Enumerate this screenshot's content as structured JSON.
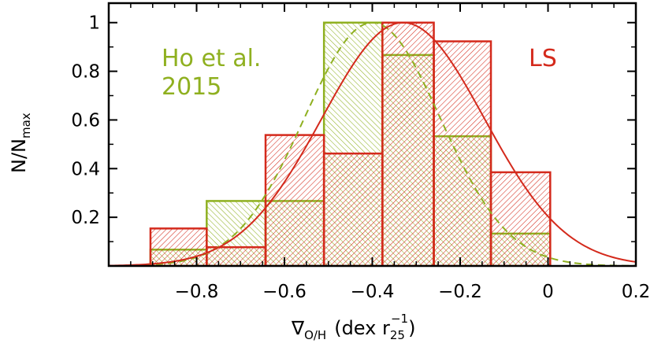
{
  "chart_data": {
    "type": "bar",
    "xlim": [
      -1.0,
      0.2
    ],
    "ylim": [
      0,
      1.08
    ],
    "x_ticks": [
      -0.8,
      -0.6,
      -0.4,
      -0.2,
      0,
      0.2
    ],
    "x_tick_labels": [
      "−0.8",
      "−0.6",
      "−0.4",
      "−0.2",
      "0",
      "0.2"
    ],
    "y_ticks": [
      0.2,
      0.4,
      0.6,
      0.8,
      1
    ],
    "y_tick_labels": [
      "0.2",
      "0.4",
      "0.6",
      "0.8",
      "1"
    ],
    "xlabel": {
      "main": "∇",
      "sub": "O/H",
      "text": "(dex r",
      "sub2": "25",
      "sup": "−1",
      "close": ")"
    },
    "ylabel": {
      "main": "N/N",
      "sub": "max"
    },
    "colors": {
      "ls": "#d42a1c",
      "ho": "#8fb020"
    },
    "series": [
      {
        "key": "ho",
        "name_lines": [
          "Ho et al.",
          "2015"
        ],
        "bins": [
          {
            "x0": -0.905,
            "x1": -0.777,
            "y": 0.067
          },
          {
            "x0": -0.777,
            "x1": -0.643,
            "y": 0.267
          },
          {
            "x0": -0.643,
            "x1": -0.51,
            "y": 0.267
          },
          {
            "x0": -0.51,
            "x1": -0.377,
            "y": 1.0
          },
          {
            "x0": -0.377,
            "x1": -0.26,
            "y": 0.867
          },
          {
            "x0": -0.26,
            "x1": -0.13,
            "y": 0.533
          },
          {
            "x0": -0.13,
            "x1": 0.005,
            "y": 0.133
          }
        ],
        "curve": {
          "mu": -0.4,
          "sigma": 0.155
        }
      },
      {
        "key": "ls",
        "name_lines": [
          "LS"
        ],
        "bins": [
          {
            "x0": -0.905,
            "x1": -0.777,
            "y": 0.154
          },
          {
            "x0": -0.777,
            "x1": -0.643,
            "y": 0.077
          },
          {
            "x0": -0.643,
            "x1": -0.51,
            "y": 0.538
          },
          {
            "x0": -0.51,
            "x1": -0.377,
            "y": 0.462
          },
          {
            "x0": -0.377,
            "x1": -0.26,
            "y": 1.0
          },
          {
            "x0": -0.26,
            "x1": -0.13,
            "y": 0.923
          },
          {
            "x0": -0.13,
            "x1": 0.005,
            "y": 0.385
          }
        ],
        "curve": {
          "mu": -0.33,
          "sigma": 0.185
        }
      }
    ]
  }
}
